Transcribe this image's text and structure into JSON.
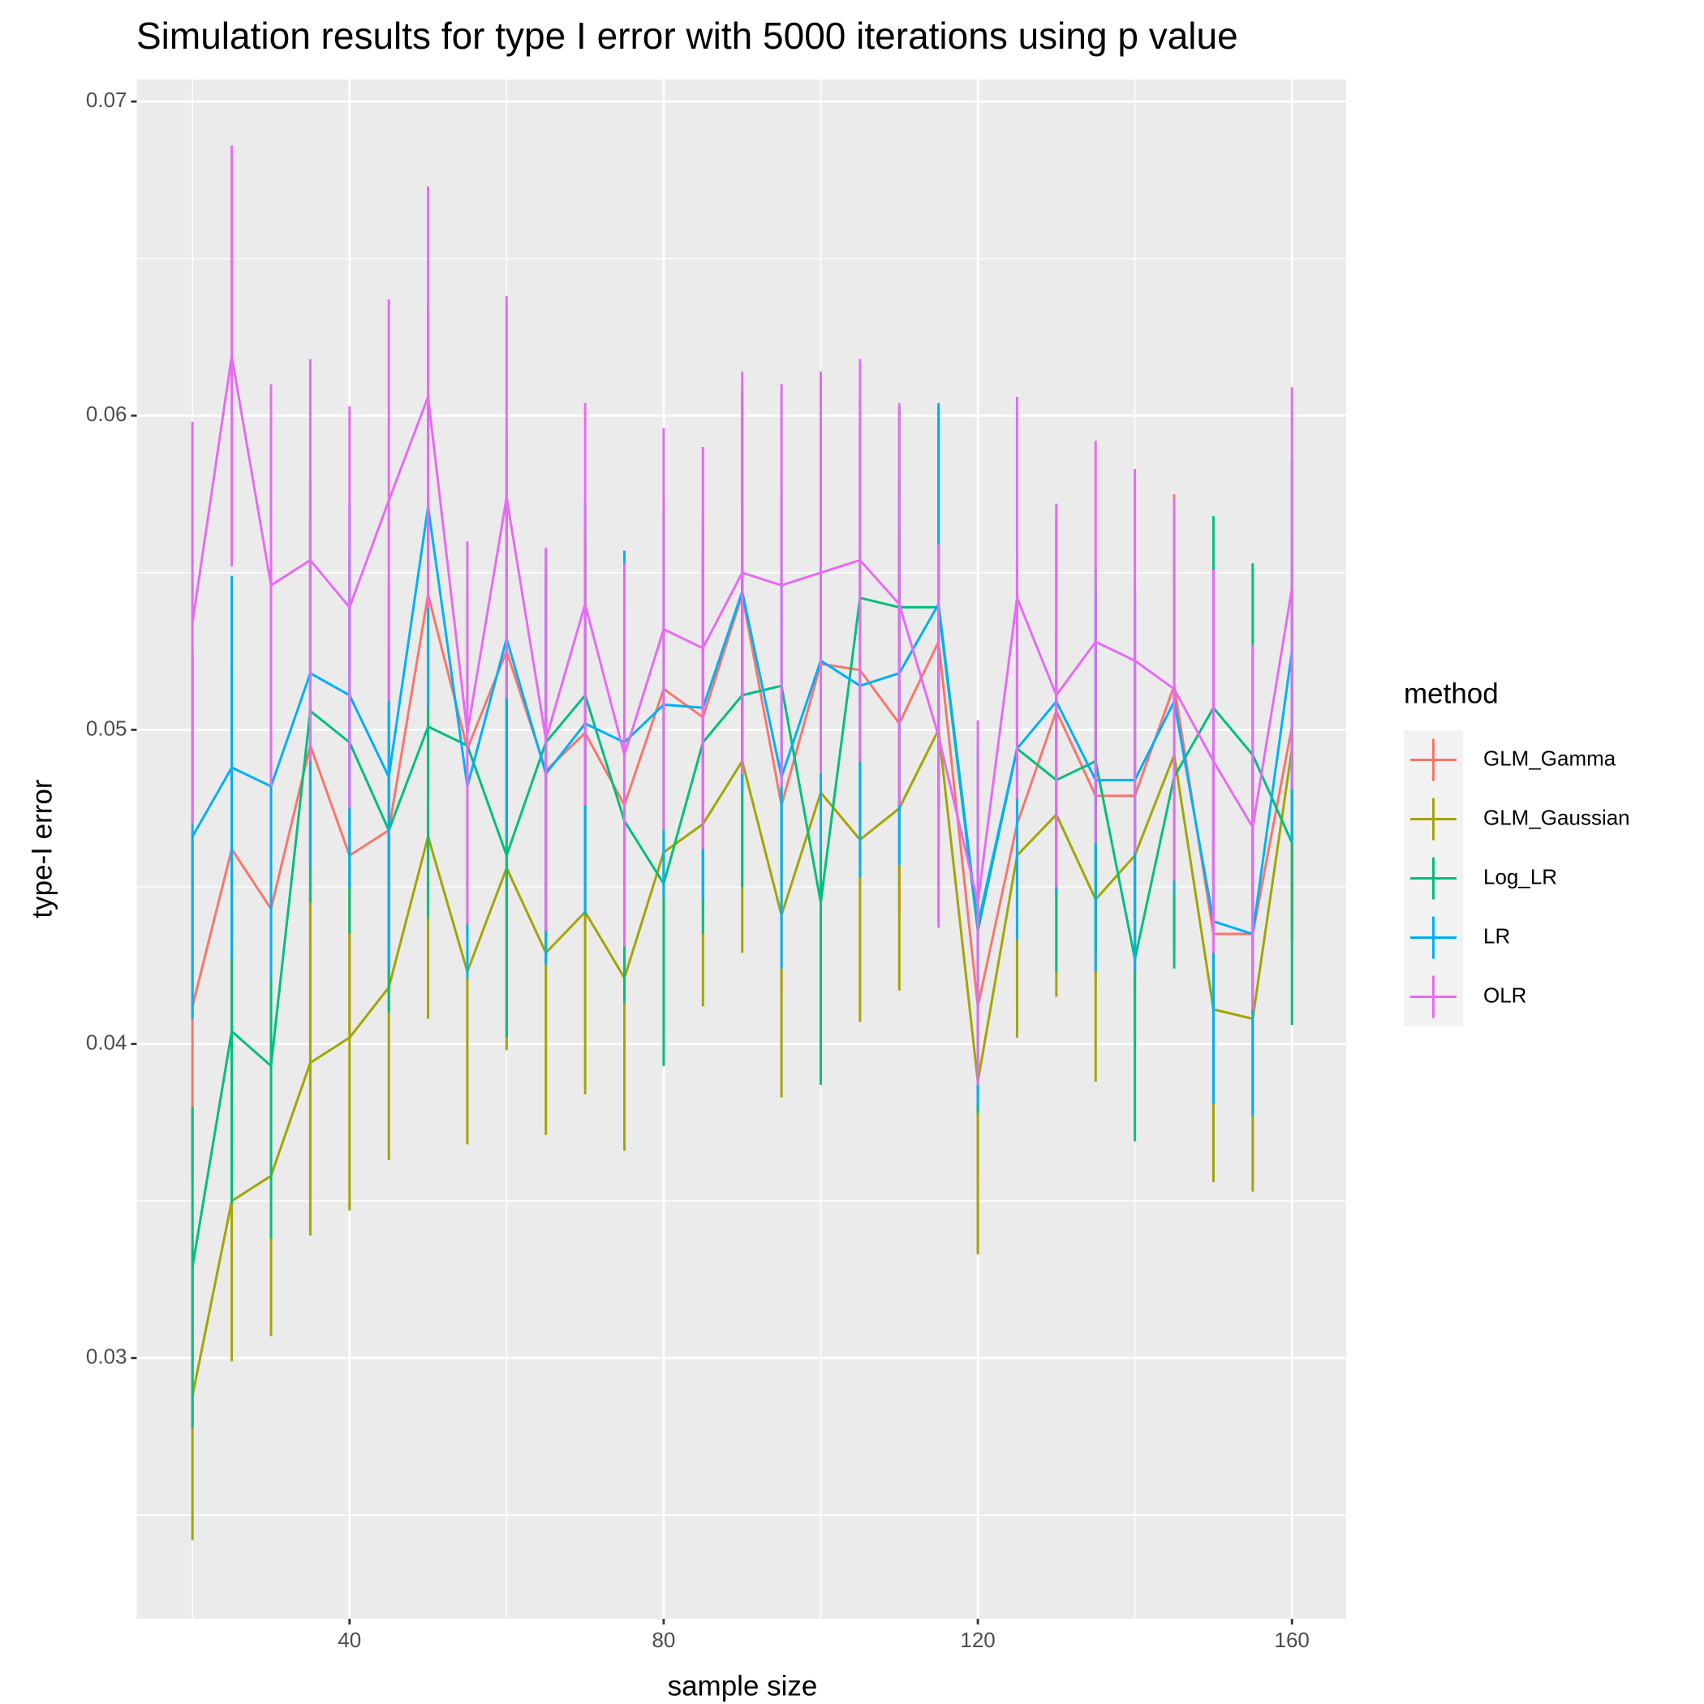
{
  "chart_data": {
    "type": "line_errorbar",
    "title": "Simulation results for type I error with 5000 iterations using p value",
    "x_label": "sample size",
    "y_label": "type-I error",
    "legend_title": "method",
    "legend": "right",
    "grid": true,
    "x": [
      20,
      25,
      30,
      35,
      40,
      45,
      50,
      55,
      60,
      65,
      70,
      75,
      80,
      85,
      90,
      95,
      100,
      105,
      110,
      115,
      120,
      125,
      130,
      135,
      140,
      145,
      150,
      155,
      160
    ],
    "xlim": [
      12.9,
      166.9
    ],
    "xticks": [
      40,
      80,
      120,
      160
    ],
    "ylim": [
      0.0217,
      0.0707
    ],
    "yticks": [
      0.03,
      0.04,
      0.05,
      0.06,
      0.07
    ],
    "series": [
      {
        "name": "GLM_Gamma",
        "color": "#F8766D",
        "values": [
          0.0412,
          0.0462,
          0.0443,
          0.0495,
          0.046,
          0.0468,
          0.0543,
          0.0494,
          0.0525,
          0.0487,
          0.0499,
          0.0476,
          0.0513,
          0.0504,
          0.0543,
          0.0476,
          0.0521,
          0.0519,
          0.0502,
          0.0528,
          0.0412,
          0.047,
          0.0506,
          0.0479,
          0.0479,
          0.0514,
          0.0435,
          0.0435,
          0.0501
        ],
        "errors": [
          0.0055,
          0.0058,
          0.0058,
          0.0061,
          0.0058,
          0.0058,
          0.0064,
          0.0061,
          0.0061,
          0.0061,
          0.0061,
          0.0061,
          0.0061,
          0.0061,
          0.0064,
          0.0061,
          0.0061,
          0.0061,
          0.0061,
          0.0064,
          0.0055,
          0.0058,
          0.0061,
          0.0061,
          0.0061,
          0.0061,
          0.0058,
          0.0058,
          0.0061
        ]
      },
      {
        "name": "GLM_Gaussian",
        "color": "#A3A500",
        "values": [
          0.0288,
          0.035,
          0.0358,
          0.0394,
          0.0402,
          0.0418,
          0.0466,
          0.0423,
          0.0456,
          0.0429,
          0.0442,
          0.0421,
          0.0461,
          0.047,
          0.049,
          0.0441,
          0.048,
          0.0465,
          0.0475,
          0.05,
          0.0388,
          0.046,
          0.0473,
          0.0446,
          0.046,
          0.0492,
          0.0411,
          0.0408,
          0.0494
        ],
        "errors": [
          0.0046,
          0.0051,
          0.0051,
          0.0055,
          0.0055,
          0.0055,
          0.0058,
          0.0055,
          0.0058,
          0.0058,
          0.0058,
          0.0055,
          0.0058,
          0.0058,
          0.0061,
          0.0058,
          0.0061,
          0.0058,
          0.0058,
          0.0061,
          0.0055,
          0.0058,
          0.0058,
          0.0058,
          0.0058,
          0.0061,
          0.0055,
          0.0055,
          0.0061
        ]
      },
      {
        "name": "Log_LR",
        "color": "#00BF7D",
        "values": [
          0.0329,
          0.0404,
          0.0393,
          0.0506,
          0.0496,
          0.0468,
          0.0501,
          0.0495,
          0.046,
          0.0496,
          0.0511,
          0.0471,
          0.0451,
          0.0496,
          0.0511,
          0.0514,
          0.0445,
          0.0542,
          0.0539,
          0.0539,
          0.0436,
          0.0494,
          0.0484,
          0.049,
          0.0427,
          0.0485,
          0.0507,
          0.0492,
          0.0464
        ],
        "errors": [
          0.0051,
          0.0055,
          0.0055,
          0.0061,
          0.0061,
          0.0058,
          0.0061,
          0.0061,
          0.0058,
          0.0061,
          0.0061,
          0.0058,
          0.0058,
          0.0061,
          0.0061,
          0.0061,
          0.0058,
          0.0064,
          0.0064,
          0.0064,
          0.0058,
          0.0061,
          0.0061,
          0.0061,
          0.0058,
          0.0061,
          0.0061,
          0.0061,
          0.0058
        ]
      },
      {
        "name": "LR",
        "color": "#00B0F6",
        "values": [
          0.0466,
          0.0488,
          0.0482,
          0.0518,
          0.0511,
          0.0485,
          0.0571,
          0.0482,
          0.0529,
          0.0486,
          0.0502,
          0.0496,
          0.0508,
          0.0507,
          0.0544,
          0.0485,
          0.0522,
          0.0514,
          0.0518,
          0.054,
          0.0438,
          0.0494,
          0.0509,
          0.0484,
          0.0484,
          0.0509,
          0.0439,
          0.0435,
          0.0525
        ],
        "errors": [
          0.0058,
          0.0061,
          0.0061,
          0.0061,
          0.0061,
          0.0061,
          0.0064,
          0.0061,
          0.0064,
          0.0061,
          0.0061,
          0.0061,
          0.0061,
          0.0061,
          0.0064,
          0.0061,
          0.0061,
          0.0061,
          0.0061,
          0.0064,
          0.0058,
          0.0061,
          0.0061,
          0.0061,
          0.0061,
          0.0061,
          0.0058,
          0.0058,
          0.0061
        ]
      },
      {
        "name": "OLR",
        "color": "#E76BF3",
        "values": [
          0.0534,
          0.0619,
          0.0546,
          0.0554,
          0.0539,
          0.0573,
          0.0606,
          0.0499,
          0.0574,
          0.0497,
          0.054,
          0.0492,
          0.0532,
          0.0526,
          0.055,
          0.0546,
          0.055,
          0.0554,
          0.054,
          0.0498,
          0.0445,
          0.0542,
          0.0511,
          0.0528,
          0.0522,
          0.0513,
          0.049,
          0.0469,
          0.0545
        ],
        "errors": [
          0.0064,
          0.0067,
          0.0064,
          0.0064,
          0.0064,
          0.0064,
          0.0067,
          0.0061,
          0.0064,
          0.0061,
          0.0064,
          0.0061,
          0.0064,
          0.0064,
          0.0064,
          0.0064,
          0.0064,
          0.0064,
          0.0064,
          0.0061,
          0.0058,
          0.0064,
          0.0061,
          0.0064,
          0.0061,
          0.0061,
          0.0061,
          0.0058,
          0.0064
        ]
      }
    ]
  }
}
